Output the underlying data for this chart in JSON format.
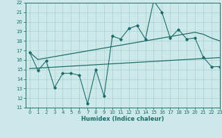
{
  "xlabel": "Humidex (Indice chaleur)",
  "bg_color": "#cce8e8",
  "line_color": "#1a6b6b",
  "grid_color": "#aacfcf",
  "x_data": [
    0,
    1,
    2,
    3,
    4,
    5,
    6,
    7,
    8,
    9,
    10,
    11,
    12,
    13,
    14,
    15,
    16,
    17,
    18,
    19,
    20,
    21,
    22,
    23
  ],
  "main_line": [
    16.8,
    14.9,
    15.9,
    13.1,
    14.6,
    14.6,
    14.4,
    11.4,
    15.0,
    12.2,
    18.5,
    18.2,
    19.3,
    19.6,
    18.2,
    22.2,
    21.0,
    18.3,
    19.2,
    18.2,
    18.3,
    16.3,
    15.3,
    15.3
  ],
  "trend_upper": [
    16.8,
    16.05,
    16.2,
    16.35,
    16.5,
    16.65,
    16.8,
    16.95,
    17.1,
    17.25,
    17.4,
    17.55,
    17.7,
    17.85,
    18.0,
    18.15,
    18.3,
    18.45,
    18.6,
    18.75,
    18.9,
    18.7,
    18.3,
    18.0
  ],
  "trend_lower": [
    15.1,
    15.15,
    15.2,
    15.25,
    15.3,
    15.35,
    15.4,
    15.45,
    15.5,
    15.55,
    15.6,
    15.65,
    15.7,
    15.75,
    15.8,
    15.85,
    15.9,
    15.95,
    16.0,
    16.05,
    16.1,
    16.15,
    16.2,
    16.25
  ],
  "ylim": [
    11,
    22
  ],
  "xlim": [
    -0.5,
    23
  ],
  "yticks": [
    11,
    12,
    13,
    14,
    15,
    16,
    17,
    18,
    19,
    20,
    21,
    22
  ],
  "xticks": [
    0,
    1,
    2,
    3,
    4,
    5,
    6,
    7,
    8,
    9,
    10,
    11,
    12,
    13,
    14,
    15,
    16,
    17,
    18,
    19,
    20,
    21,
    22,
    23
  ],
  "xlabel_fontsize": 6.0,
  "tick_fontsize": 5.0
}
